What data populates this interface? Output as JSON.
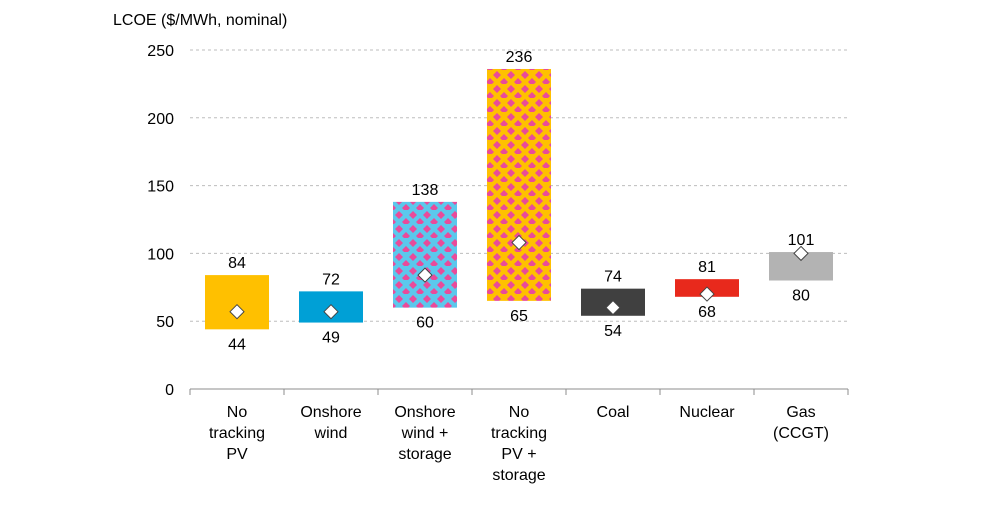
{
  "chart_data": {
    "type": "range-bar",
    "title": "",
    "ylabel": "LCOE ($/MWh, nominal)",
    "xlabel": "",
    "ylim": [
      0,
      250
    ],
    "yticks": [
      0,
      50,
      100,
      150,
      200,
      250
    ],
    "grid": true,
    "categories": [
      "No tracking PV",
      "Onshore wind",
      "Onshore wind + storage",
      "No tracking PV + storage",
      "Coal",
      "Nuclear",
      "Gas (CCGT)"
    ],
    "category_lines": [
      [
        "No",
        "tracking",
        "PV"
      ],
      [
        "Onshore",
        "wind"
      ],
      [
        "Onshore",
        "wind +",
        "storage"
      ],
      [
        "No",
        "tracking",
        "PV +",
        "storage"
      ],
      [
        "Coal"
      ],
      [
        "Nuclear"
      ],
      [
        "Gas",
        "(CCGT)"
      ]
    ],
    "low": [
      44,
      49,
      60,
      65,
      54,
      68,
      80
    ],
    "high": [
      84,
      72,
      138,
      236,
      74,
      81,
      101
    ],
    "midpoint": [
      57,
      57,
      84,
      108,
      60,
      70,
      100
    ],
    "colors": [
      "#FFC000",
      "#00A0D6",
      "#5BC8EC",
      "#FFC000",
      "#404040",
      "#E8291C",
      "#B3B3B3"
    ],
    "patterned": [
      false,
      false,
      true,
      true,
      false,
      false,
      false
    ],
    "pattern_dot_color": "#E94B9A"
  }
}
